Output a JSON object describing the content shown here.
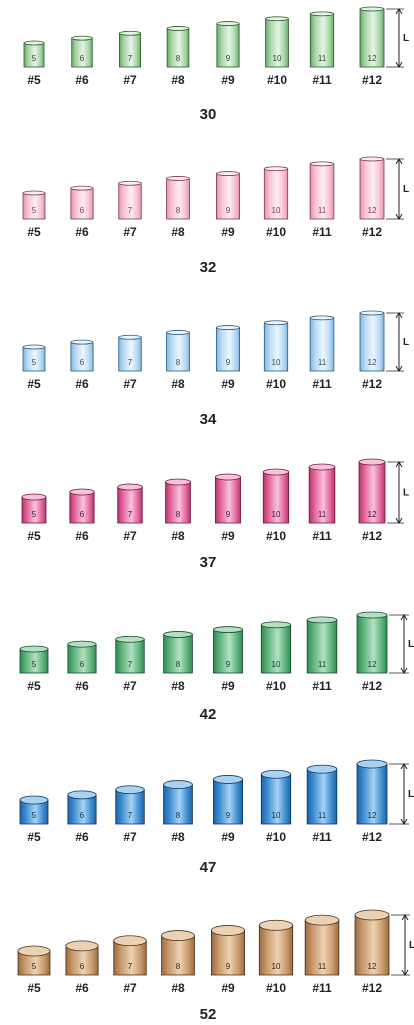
{
  "length_marker": "L",
  "groups": [
    {
      "size": "30",
      "color": {
        "light": "#e6f4e6",
        "mid": "#a9d6a9",
        "dark": "#6aaa6a",
        "edge": "#2a5a2a",
        "text": "#2c4a2c"
      },
      "cylinders": [
        {
          "number": "5",
          "label": "#5"
        },
        {
          "number": "6",
          "label": "#6"
        },
        {
          "number": "7",
          "label": "#7"
        },
        {
          "number": "8",
          "label": "#8"
        },
        {
          "number": "9",
          "label": "#9"
        },
        {
          "number": "10",
          "label": "#10"
        },
        {
          "number": "11",
          "label": "#11"
        },
        {
          "number": "12",
          "label": "#12"
        }
      ]
    },
    {
      "size": "32",
      "color": {
        "light": "#fdeef3",
        "mid": "#f8c2d2",
        "dark": "#e593ad",
        "edge": "#7a3a4e",
        "text": "#7a3a4e"
      },
      "cylinders": [
        {
          "number": "5",
          "label": "#5"
        },
        {
          "number": "6",
          "label": "#6"
        },
        {
          "number": "7",
          "label": "#7"
        },
        {
          "number": "8",
          "label": "#8"
        },
        {
          "number": "9",
          "label": "#9"
        },
        {
          "number": "10",
          "label": "#10"
        },
        {
          "number": "11",
          "label": "#11"
        },
        {
          "number": "12",
          "label": "#12"
        }
      ]
    },
    {
      "size": "34",
      "color": {
        "light": "#eef6fd",
        "mid": "#b8daf4",
        "dark": "#7fb6e2",
        "edge": "#2c5a80",
        "text": "#2c4a66"
      },
      "cylinders": [
        {
          "number": "5",
          "label": "#5"
        },
        {
          "number": "6",
          "label": "#6"
        },
        {
          "number": "7",
          "label": "#7"
        },
        {
          "number": "8",
          "label": "#8"
        },
        {
          "number": "9",
          "label": "#9"
        },
        {
          "number": "10",
          "label": "#10"
        },
        {
          "number": "11",
          "label": "#11"
        },
        {
          "number": "12",
          "label": "#12"
        }
      ]
    },
    {
      "size": "37",
      "color": {
        "light": "#f9c2da",
        "mid": "#e4689e",
        "dark": "#b8336f",
        "edge": "#6a1a3e",
        "text": "#4a1028"
      },
      "cylinders": [
        {
          "number": "5",
          "label": "#5"
        },
        {
          "number": "6",
          "label": "#6"
        },
        {
          "number": "7",
          "label": "#7"
        },
        {
          "number": "8",
          "label": "#8"
        },
        {
          "number": "9",
          "label": "#9"
        },
        {
          "number": "10",
          "label": "#10"
        },
        {
          "number": "11",
          "label": "#11"
        },
        {
          "number": "12",
          "label": "#12"
        }
      ]
    },
    {
      "size": "42",
      "color": {
        "light": "#b4e0c2",
        "mid": "#5fb47e",
        "dark": "#2f8a50",
        "edge": "#1a4a2c",
        "text": "#133a22"
      },
      "cylinders": [
        {
          "number": "5",
          "label": "#5"
        },
        {
          "number": "6",
          "label": "#6"
        },
        {
          "number": "7",
          "label": "#7"
        },
        {
          "number": "8",
          "label": "#8"
        },
        {
          "number": "9",
          "label": "#9"
        },
        {
          "number": "10",
          "label": "#10"
        },
        {
          "number": "11",
          "label": "#11"
        },
        {
          "number": "12",
          "label": "#12"
        }
      ]
    },
    {
      "size": "47",
      "color": {
        "light": "#a8d2f2",
        "mid": "#3f8fd2",
        "dark": "#1d63a8",
        "edge": "#12365a",
        "text": "#0e2e4e"
      },
      "cylinders": [
        {
          "number": "5",
          "label": "#5"
        },
        {
          "number": "6",
          "label": "#6"
        },
        {
          "number": "7",
          "label": "#7"
        },
        {
          "number": "8",
          "label": "#8"
        },
        {
          "number": "9",
          "label": "#9"
        },
        {
          "number": "10",
          "label": "#10"
        },
        {
          "number": "11",
          "label": "#11"
        },
        {
          "number": "12",
          "label": "#12"
        }
      ]
    },
    {
      "size": "52",
      "color": {
        "light": "#ecd2b4",
        "mid": "#c99a6c",
        "dark": "#9a6b40",
        "edge": "#4a321c",
        "text": "#3a2614"
      },
      "cylinders": [
        {
          "number": "5",
          "label": "#5"
        },
        {
          "number": "6",
          "label": "#6"
        },
        {
          "number": "7",
          "label": "#7"
        },
        {
          "number": "8",
          "label": "#8"
        },
        {
          "number": "9",
          "label": "#9"
        },
        {
          "number": "10",
          "label": "#10"
        },
        {
          "number": "11",
          "label": "#11"
        },
        {
          "number": "12",
          "label": "#12"
        }
      ]
    }
  ]
}
